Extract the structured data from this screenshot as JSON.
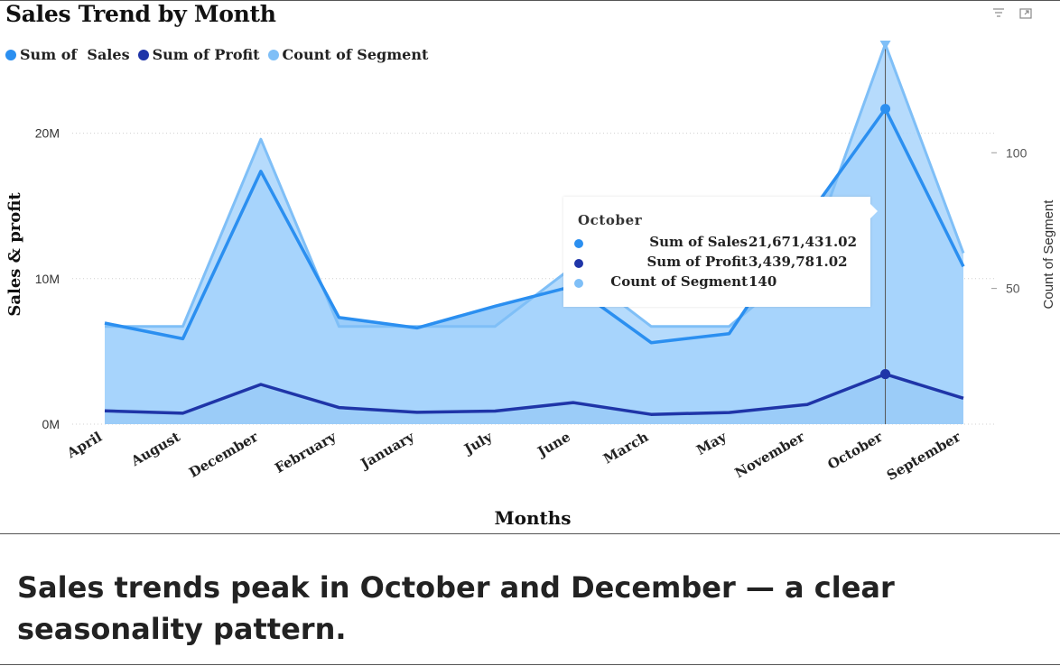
{
  "visual": {
    "title": "Sales Trend by Month",
    "icons": [
      "filter-icon",
      "focus-mode-icon"
    ]
  },
  "chart_data": {
    "type": "area",
    "title": "Sales Trend by Month",
    "xlabel": "Months",
    "ylabel": "Sales & profit",
    "y2label": "Count of Segment",
    "categories": [
      "April",
      "August",
      "December",
      "February",
      "January",
      "July",
      "June",
      "March",
      "May",
      "November",
      "October",
      "September"
    ],
    "ylim": [
      0,
      25000000
    ],
    "y2lim": [
      0,
      134
    ],
    "y_ticks": [
      {
        "value": 0,
        "label": "0M"
      },
      {
        "value": 10000000,
        "label": "10M"
      },
      {
        "value": 20000000,
        "label": "20M"
      }
    ],
    "y2_ticks": [
      {
        "value": 50,
        "label": "50"
      },
      {
        "value": 100,
        "label": "100"
      }
    ],
    "legend_position": "top-left",
    "grid": true,
    "series": [
      {
        "name": "Sum of  Sales",
        "axis": "left",
        "color": "#2b8ff0",
        "values": [
          6950000,
          5870000,
          17380000,
          7330000,
          6610000,
          8110000,
          9480000,
          5600000,
          6220000,
          14200000,
          21671431.02,
          10840000
        ]
      },
      {
        "name": "Sum of Profit",
        "axis": "left",
        "color": "#1f35a8",
        "values": [
          910000,
          750000,
          2730000,
          1140000,
          810000,
          900000,
          1480000,
          670000,
          800000,
          1350000,
          3439781.02,
          1780000
        ]
      },
      {
        "name": "Count of Segment",
        "axis": "right",
        "color": "#7fbff7",
        "values": [
          36,
          36,
          105,
          36,
          36,
          36,
          58,
          36,
          36,
          60,
          140,
          63
        ]
      }
    ],
    "tooltip": {
      "category": "October",
      "rows": [
        {
          "label": "Sum of Sales",
          "value": "21,671,431.02",
          "color": "#2b8ff0"
        },
        {
          "label": "Sum of Profit",
          "value": "3,439,781.02",
          "color": "#1f35a8"
        },
        {
          "label": "Count of Segment",
          "value": "140",
          "color": "#7fbff7"
        }
      ]
    }
  },
  "caption": "Sales trends peak in October and December — a clear seasonality pattern."
}
